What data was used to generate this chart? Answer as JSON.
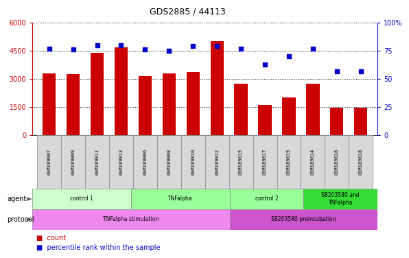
{
  "title": "GDS2885 / 44113",
  "samples": [
    "GSM189807",
    "GSM189809",
    "GSM189811",
    "GSM189813",
    "GSM189806",
    "GSM189808",
    "GSM189810",
    "GSM189812",
    "GSM189815",
    "GSM189817",
    "GSM189819",
    "GSM189814",
    "GSM189816",
    "GSM189818"
  ],
  "counts": [
    3300,
    3250,
    4400,
    4700,
    3150,
    3300,
    3350,
    5000,
    2750,
    1600,
    2000,
    2750,
    1450,
    1450
  ],
  "percentiles": [
    77,
    76,
    80,
    80,
    76,
    75,
    79,
    79,
    77,
    63,
    70,
    77,
    57,
    57
  ],
  "ylim_left": [
    0,
    6000
  ],
  "ylim_right": [
    0,
    100
  ],
  "yticks_left": [
    0,
    1500,
    3000,
    4500,
    6000
  ],
  "yticks_right": [
    0,
    25,
    50,
    75,
    100
  ],
  "bar_color": "#cc0000",
  "dot_color": "#0000cc",
  "agent_groups": [
    {
      "label": "control 1",
      "start": 0,
      "end": 4,
      "color": "#ccffcc"
    },
    {
      "label": "TNFalpha",
      "start": 4,
      "end": 8,
      "color": "#99ff99"
    },
    {
      "label": "control 2",
      "start": 8,
      "end": 11,
      "color": "#99ff99"
    },
    {
      "label": "SB203580 and\nTNFalpha",
      "start": 11,
      "end": 14,
      "color": "#33dd33"
    }
  ],
  "protocol_groups": [
    {
      "label": "TNFalpha stimulation",
      "start": 0,
      "end": 8,
      "color": "#ee88ee"
    },
    {
      "label": "SB203580 preincubation",
      "start": 8,
      "end": 14,
      "color": "#cc55cc"
    }
  ],
  "bar_color_legend": "count",
  "dot_color_legend": "percentile rank within the sample"
}
